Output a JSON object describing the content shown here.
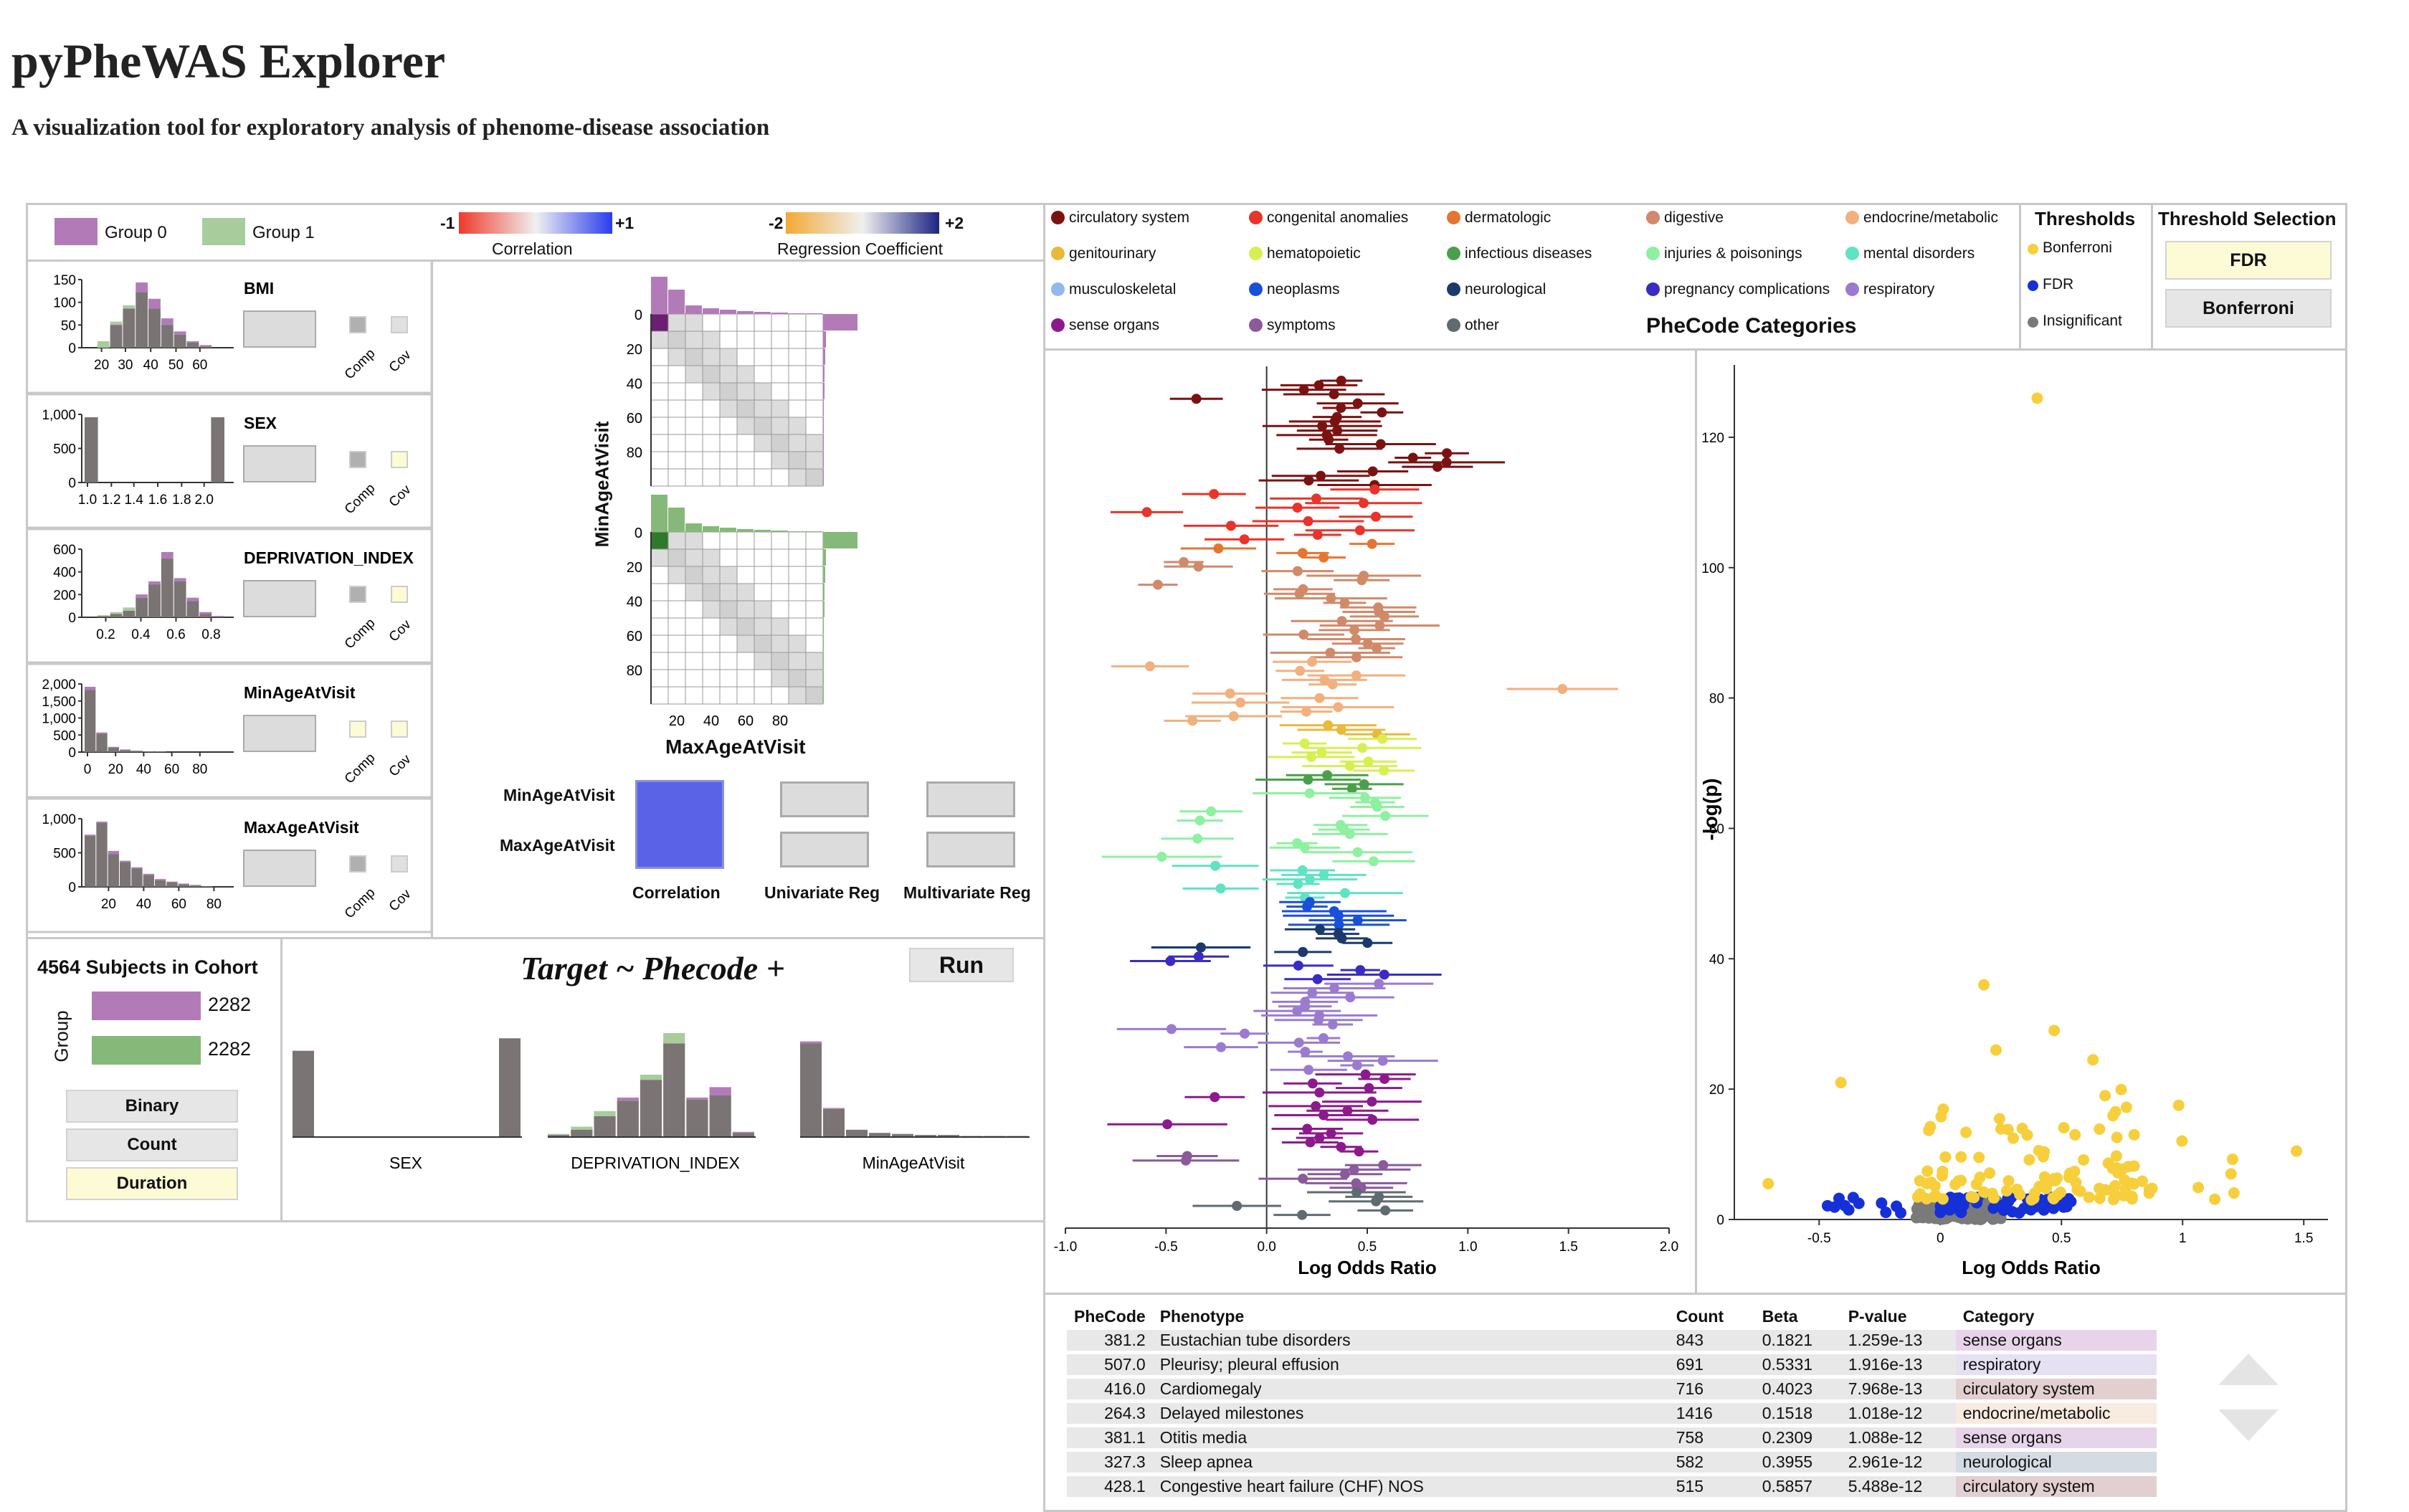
{
  "title": "pyPheWAS Explorer",
  "subtitle": "A visualization tool for exploratory analysis of phenome-disease association",
  "legend": {
    "group0": "Group 0",
    "group1": "Group 1",
    "corr_min": "-1",
    "corr_max": "+1",
    "corr_label": "Correlation",
    "reg_min": "-2",
    "reg_max": "+2",
    "reg_label": "Regression Coefficient"
  },
  "colors": {
    "group0": "#b27bb8",
    "group1": "#a9cc9d",
    "gray": "#7b7474",
    "bonferroni": "#f7cf3d",
    "fdr": "#1530d6",
    "insig": "#7a7a7a"
  },
  "covariates": [
    {
      "name": "BMI",
      "comp": "Comp",
      "cov": "Cov",
      "comp_on": true,
      "cov_on": false,
      "yticks": [
        "150",
        "100",
        "50",
        "0"
      ],
      "xticks": [
        "20",
        "30",
        "40",
        "50",
        "60"
      ]
    },
    {
      "name": "SEX",
      "comp": "Comp",
      "cov": "Cov",
      "comp_on": true,
      "cov_on": true,
      "yticks": [
        "1,000",
        "500",
        "0"
      ],
      "xticks": [
        "1.0",
        "1.2",
        "1.4",
        "1.6",
        "1.8",
        "2.0"
      ]
    },
    {
      "name": "DEPRIVATION_INDEX",
      "comp": "Comp",
      "cov": "Cov",
      "comp_on": true,
      "cov_on": true,
      "yticks": [
        "600",
        "400",
        "200",
        "0"
      ],
      "xticks": [
        "0.2",
        "0.4",
        "0.6",
        "0.8"
      ]
    },
    {
      "name": "MinAgeAtVisit",
      "comp": "Comp",
      "cov": "Cov",
      "comp_on": false,
      "cov_on": true,
      "yticks": [
        "2,000",
        "1,500",
        "1,000",
        "500",
        "0"
      ],
      "xticks": [
        "0",
        "20",
        "40",
        "60",
        "80"
      ]
    },
    {
      "name": "MaxAgeAtVisit",
      "comp": "Comp",
      "cov": "Cov",
      "comp_on": true,
      "cov_on": false,
      "yticks": [
        "1,000",
        "500",
        "0"
      ],
      "xticks": [
        "20",
        "40",
        "60",
        "80"
      ]
    }
  ],
  "matrix": {
    "ylabel": "MinAgeAtVisit",
    "xlabel": "MaxAgeAtVisit",
    "yticks": [
      "0",
      "20",
      "40",
      "60",
      "80"
    ],
    "xticks": [
      "20",
      "40",
      "60",
      "80"
    ],
    "row1": "MinAgeAtVisit",
    "row2": "MaxAgeAtVisit",
    "col1": "Correlation",
    "col2": "Univariate Reg",
    "col3": "Multivariate Reg"
  },
  "cohort": {
    "title": "4564 Subjects in Cohort",
    "group_label": "Group",
    "group0_count": "2282",
    "group1_count": "2282",
    "buttons": [
      "Binary",
      "Count",
      "Duration"
    ],
    "selected": "Duration"
  },
  "model": {
    "formula": "Target ~ Phecode +",
    "run": "Run",
    "vars": [
      "SEX",
      "DEPRIVATION_INDEX",
      "MinAgeAtVisit"
    ]
  },
  "categories": {
    "title": "PheCode Categories",
    "items": [
      {
        "name": "circulatory system",
        "color": "#7b1212"
      },
      {
        "name": "congenital anomalies",
        "color": "#e8342a"
      },
      {
        "name": "dermatologic",
        "color": "#e57632"
      },
      {
        "name": "digestive",
        "color": "#d08a6a"
      },
      {
        "name": "endocrine/metabolic",
        "color": "#f2b07f"
      },
      {
        "name": "genitourinary",
        "color": "#e8b93a"
      },
      {
        "name": "hematopoietic",
        "color": "#d8ef52"
      },
      {
        "name": "infectious diseases",
        "color": "#4aa04a"
      },
      {
        "name": "injuries & poisonings",
        "color": "#8ef0a0"
      },
      {
        "name": "mental disorders",
        "color": "#5fe3c3"
      },
      {
        "name": "musculoskeletal",
        "color": "#93b8ef"
      },
      {
        "name": "neoplasms",
        "color": "#1a4fd8"
      },
      {
        "name": "neurological",
        "color": "#1b3a6b"
      },
      {
        "name": "pregnancy complications",
        "color": "#3a2bc4"
      },
      {
        "name": "respiratory",
        "color": "#9a7bd0"
      },
      {
        "name": "sense organs",
        "color": "#8d1a8d"
      },
      {
        "name": "symptoms",
        "color": "#8a5a9c"
      },
      {
        "name": "other",
        "color": "#5f6b70"
      }
    ]
  },
  "thresholds": {
    "title": "Thresholds",
    "items": [
      "Bonferroni",
      "FDR",
      "Insignificant"
    ],
    "selection_title": "Threshold Selection",
    "buttons": [
      "FDR",
      "Bonferroni"
    ],
    "selected": "FDR"
  },
  "forest": {
    "xlabel": "Log Odds Ratio",
    "xticks": [
      "-1.0",
      "-0.5",
      "0.0",
      "0.5",
      "1.0",
      "1.5",
      "2.0"
    ]
  },
  "volcano": {
    "xlabel": "Log Odds Ratio",
    "ylabel": "-log(p)",
    "xticks": [
      "-0.5",
      "0",
      "0.5",
      "1",
      "1.5"
    ],
    "yticks": [
      "0",
      "20",
      "40",
      "60",
      "80",
      "100",
      "120"
    ]
  },
  "table": {
    "headers": [
      "PheCode",
      "Phenotype",
      "Count",
      "Beta",
      "P-value",
      "Category"
    ],
    "rows": [
      {
        "phecode": "381.2",
        "phenotype": "Eustachian tube disorders",
        "count": "843",
        "beta": "0.1821",
        "pvalue": "1.259e-13",
        "category": "sense organs",
        "color": "#e8d4ea"
      },
      {
        "phecode": "507.0",
        "phenotype": "Pleurisy; pleural effusion",
        "count": "691",
        "beta": "0.5331",
        "pvalue": "1.916e-13",
        "category": "respiratory",
        "color": "#e6e0f3"
      },
      {
        "phecode": "416.0",
        "phenotype": "Cardiomegaly",
        "count": "716",
        "beta": "0.4023",
        "pvalue": "7.968e-13",
        "category": "circulatory system",
        "color": "#e2cfcf"
      },
      {
        "phecode": "264.3",
        "phenotype": "Delayed milestones",
        "count": "1416",
        "beta": "0.1518",
        "pvalue": "1.018e-12",
        "category": "endocrine/metabolic",
        "color": "#f8ebe0"
      },
      {
        "phecode": "381.1",
        "phenotype": "Otitis media",
        "count": "758",
        "beta": "0.2309",
        "pvalue": "1.088e-12",
        "category": "sense organs",
        "color": "#e8d4ea"
      },
      {
        "phecode": "327.3",
        "phenotype": "Sleep apnea",
        "count": "582",
        "beta": "0.3955",
        "pvalue": "2.961e-12",
        "category": "neurological",
        "color": "#d5dbe3"
      },
      {
        "phecode": "428.1",
        "phenotype": "Congestive heart failure (CHF) NOS",
        "count": "515",
        "beta": "0.5857",
        "pvalue": "5.488e-12",
        "category": "circulatory system",
        "color": "#e2cfcf"
      }
    ]
  }
}
